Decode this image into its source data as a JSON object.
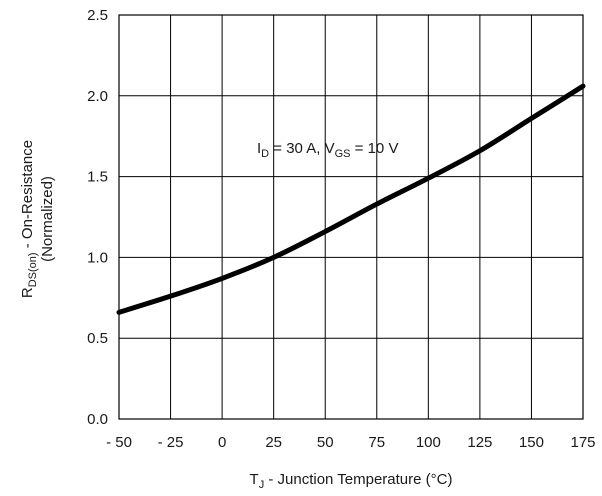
{
  "chart_data": {
    "type": "line",
    "title": "",
    "xlabel": {
      "main": "T",
      "sub": "J",
      "rest": " - Junction Temperature (°C)"
    },
    "ylabel": {
      "line1_main": "R",
      "line1_sub": "DS(on)",
      "line1_rest": " - On-Resistance",
      "line2": "(Normalized)"
    },
    "xlim": [
      -50,
      175
    ],
    "ylim": [
      0.0,
      2.5
    ],
    "x_ticks": [
      -50,
      -25,
      0,
      25,
      50,
      75,
      100,
      125,
      150,
      175
    ],
    "x_tick_labels": [
      "- 50",
      "- 25",
      "0",
      "25",
      "50",
      "75",
      "100",
      "125",
      "150",
      "175"
    ],
    "y_ticks": [
      0.0,
      0.5,
      1.0,
      1.5,
      2.0,
      2.5
    ],
    "y_tick_labels": [
      "0.0",
      "0.5",
      "1.0",
      "1.5",
      "2.0",
      "2.5"
    ],
    "grid": true,
    "annotation": {
      "p1": "I",
      "s1": "D",
      "p2": " = 30 A, V",
      "s2": "GS",
      "p3": " = 10 V"
    },
    "series": [
      {
        "x": [
          -50,
          -25,
          0,
          25,
          50,
          75,
          100,
          125,
          150,
          175
        ],
        "y": [
          0.66,
          0.76,
          0.87,
          1.0,
          1.16,
          1.33,
          1.49,
          1.66,
          1.86,
          2.06
        ]
      }
    ]
  }
}
